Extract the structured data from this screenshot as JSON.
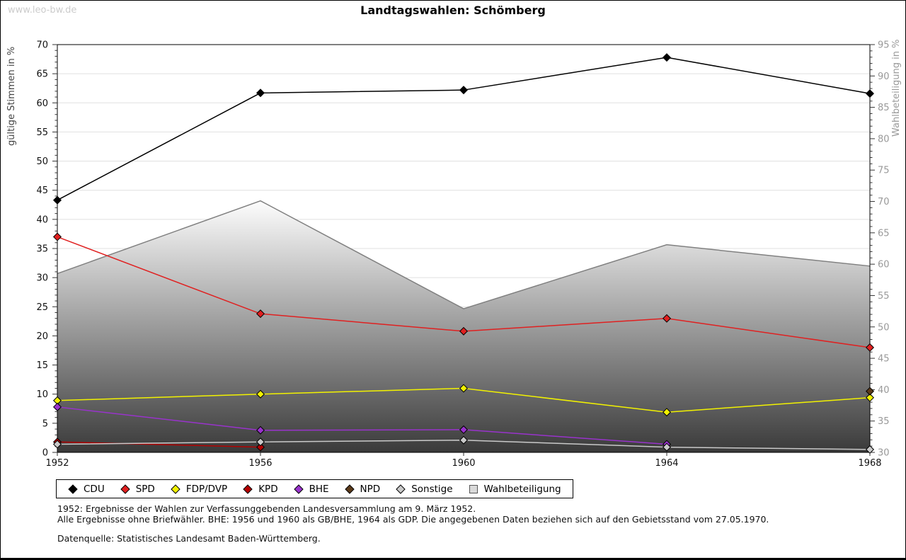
{
  "page": {
    "watermark": "www.leo-bw.de",
    "title": "Landtagswahlen: Schömberg"
  },
  "chart_data": {
    "type": "line",
    "title": "Landtagswahlen: Schömberg",
    "x": [
      1952,
      1956,
      1960,
      1964,
      1968
    ],
    "xlabel": "",
    "ylabel_left": "gültige Stimmen in %",
    "ylabel_right": "Wahlbeteiligung in %",
    "ylim_left": [
      0,
      70
    ],
    "ylim_right": [
      30,
      95
    ],
    "ytick_step": 5,
    "grid": true,
    "legend_position": "bottom",
    "colors": {
      "grid": "#e0e0e0",
      "frame": "#000000",
      "right_axis_text": "#999999",
      "left_axis_text": "#111111",
      "area_stroke": "#808080",
      "area_gradient_top": "#fdfdfd",
      "area_gradient_bottom": "#3a3a3a"
    },
    "series": [
      {
        "name": "CDU",
        "axis": "left",
        "style": "line",
        "marker": "diamond",
        "color": "#000000",
        "values": [
          43.3,
          61.7,
          62.2,
          67.8,
          61.6
        ]
      },
      {
        "name": "SPD",
        "axis": "left",
        "style": "line",
        "marker": "diamond",
        "color": "#e02020",
        "values": [
          37.0,
          23.8,
          20.8,
          23.0,
          18.0
        ]
      },
      {
        "name": "FDP/DVP",
        "axis": "left",
        "style": "line",
        "marker": "diamond",
        "color": "#f2f200",
        "values": [
          8.9,
          10.0,
          11.0,
          6.9,
          9.4
        ]
      },
      {
        "name": "KPD",
        "axis": "left",
        "style": "line",
        "marker": "diamond",
        "color": "#b40000",
        "values": [
          1.8,
          0.9,
          null,
          null,
          null
        ]
      },
      {
        "name": "BHE",
        "axis": "left",
        "style": "line",
        "marker": "diamond",
        "color": "#9933cc",
        "values": [
          7.8,
          3.8,
          3.9,
          1.4,
          null
        ]
      },
      {
        "name": "NPD",
        "axis": "left",
        "style": "line",
        "marker": "diamond",
        "color": "#5b3a1a",
        "values": [
          null,
          null,
          null,
          null,
          10.5
        ]
      },
      {
        "name": "Sonstige",
        "axis": "left",
        "style": "line",
        "marker": "diamond",
        "color": "#c9c9c9",
        "values": [
          1.4,
          1.8,
          2.1,
          0.9,
          0.5
        ]
      },
      {
        "name": "Wahlbeteiligung",
        "axis": "right",
        "style": "area",
        "marker": "square",
        "color": "#d9d9d9",
        "values": [
          58.5,
          70.1,
          52.9,
          63.1,
          59.7
        ]
      }
    ]
  },
  "footer": {
    "line1": "1952: Ergebnisse der Wahlen zur Verfassunggebenden Landesversammlung am 9. März 1952.",
    "line2": "Alle Ergebnisse ohne Briefwähler. BHE: 1956 und 1960 als GB/BHE, 1964 als GDP. Die angegebenen Daten beziehen sich auf den Gebietsstand vom 27.05.1970.",
    "line3": "Datenquelle: Statistisches Landesamt Baden-Württemberg."
  }
}
